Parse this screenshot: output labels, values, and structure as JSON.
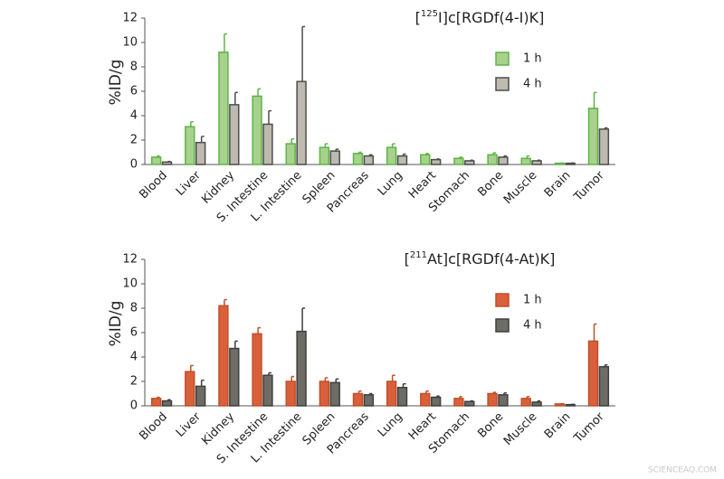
{
  "chart_data": [
    {
      "type": "bar",
      "title_parts": [
        "[",
        "125",
        "I]c[RGDf(4-I)K]"
      ],
      "y_label": "%ID/g",
      "categories": [
        "Blood",
        "Liver",
        "Kidney",
        "S. Intestine",
        "L. Intestine",
        "Spleen",
        "Pancreas",
        "Lung",
        "Heart",
        "Stomach",
        "Bone",
        "Muscle",
        "Brain",
        "Tumor"
      ],
      "series": [
        {
          "name": "1 h",
          "color": "#a9d18e",
          "edge": "#5db545",
          "values": [
            0.6,
            3.1,
            9.2,
            5.6,
            1.7,
            1.4,
            0.9,
            1.4,
            0.8,
            0.5,
            0.8,
            0.5,
            0.1,
            4.6
          ],
          "errors": [
            0.1,
            0.4,
            1.5,
            0.6,
            0.4,
            0.3,
            0.1,
            0.3,
            0.1,
            0.1,
            0.15,
            0.2,
            0.02,
            1.3
          ]
        },
        {
          "name": "4 h",
          "color": "#bfbab0",
          "edge": "#4d4d4d",
          "values": [
            0.2,
            1.8,
            4.9,
            3.3,
            6.8,
            1.1,
            0.7,
            0.7,
            0.4,
            0.3,
            0.6,
            0.3,
            0.1,
            2.9
          ],
          "errors": [
            0.05,
            0.5,
            1.0,
            1.1,
            4.5,
            0.15,
            0.1,
            0.15,
            0.05,
            0.05,
            0.1,
            0.05,
            0.02,
            0.1
          ]
        }
      ],
      "ylim": [
        0,
        12
      ],
      "yticks": [
        0,
        2,
        4,
        6,
        8,
        10,
        12
      ]
    },
    {
      "type": "bar",
      "title_parts": [
        "[",
        "211",
        "At]c[RGDf(4-At)K]"
      ],
      "y_label": "%ID/g",
      "categories": [
        "Blood",
        "Liver",
        "Kidney",
        "S. Intestine",
        "L. Intestine",
        "Spleen",
        "Pancreas",
        "Lung",
        "Heart",
        "Stomach",
        "Bone",
        "Muscle",
        "Brain",
        "Tumor"
      ],
      "series": [
        {
          "name": "1 h",
          "color": "#d9603b",
          "edge": "#c0502a",
          "values": [
            0.6,
            2.8,
            8.2,
            5.9,
            2.0,
            2.0,
            1.0,
            2.0,
            1.0,
            0.6,
            1.0,
            0.6,
            0.15,
            5.3
          ],
          "errors": [
            0.1,
            0.5,
            0.5,
            0.5,
            0.4,
            0.3,
            0.2,
            0.5,
            0.2,
            0.15,
            0.1,
            0.15,
            0.02,
            1.4
          ]
        },
        {
          "name": "4 h",
          "color": "#6d6d66",
          "edge": "#3f3f3f",
          "values": [
            0.4,
            1.6,
            4.7,
            2.5,
            6.1,
            1.9,
            0.9,
            1.5,
            0.7,
            0.35,
            0.9,
            0.3,
            0.1,
            3.2
          ],
          "errors": [
            0.1,
            0.5,
            0.6,
            0.2,
            1.9,
            0.3,
            0.1,
            0.3,
            0.1,
            0.05,
            0.15,
            0.1,
            0.02,
            0.15
          ]
        }
      ],
      "ylim": [
        0,
        12
      ],
      "yticks": [
        0,
        2,
        4,
        6,
        8,
        10,
        12
      ]
    }
  ],
  "watermark": "SCIENCEAQ.COM"
}
